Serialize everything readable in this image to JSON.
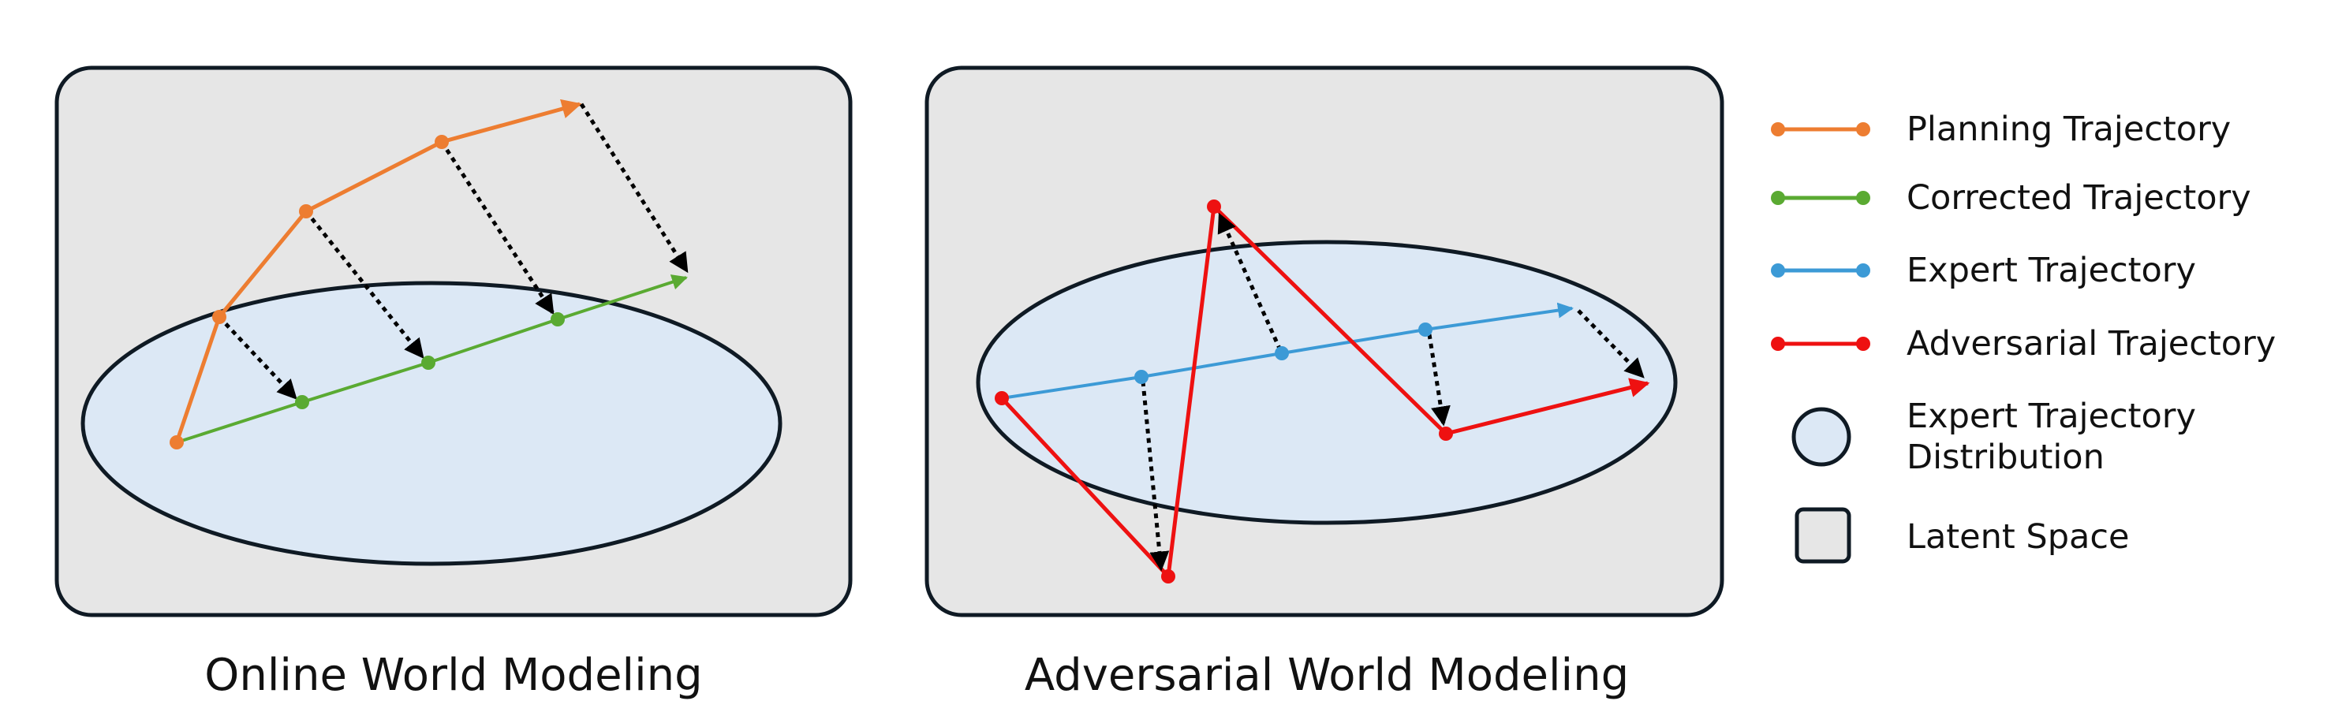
{
  "panels": [
    {
      "caption": "Online World Modeling"
    },
    {
      "caption": "Adversarial World Modeling"
    }
  ],
  "legend": [
    {
      "label": "Planning Trajectory",
      "color": "#ED7D31",
      "icon": "line-dot-marker"
    },
    {
      "label": "Corrected Trajectory",
      "color": "#5AAA32",
      "icon": "line-dot-marker"
    },
    {
      "label": "Expert Trajectory",
      "color": "#3C9AD6",
      "icon": "line-dot-marker"
    },
    {
      "label": "Adversarial Trajectory",
      "color": "#EE1111",
      "icon": "line-dot-marker"
    },
    {
      "label": "Expert Trajectory",
      "label2": "Distribution",
      "color": "#DCE8F5",
      "icon": "circle-icon"
    },
    {
      "label": "Latent Space",
      "color": "#E6E6E6",
      "icon": "square-icon"
    }
  ],
  "colors": {
    "latent_space_fill": "#E6E6E6",
    "distribution_fill": "#DCE8F5",
    "outline": "#0F1A24",
    "correction_arrow": "#000000"
  }
}
